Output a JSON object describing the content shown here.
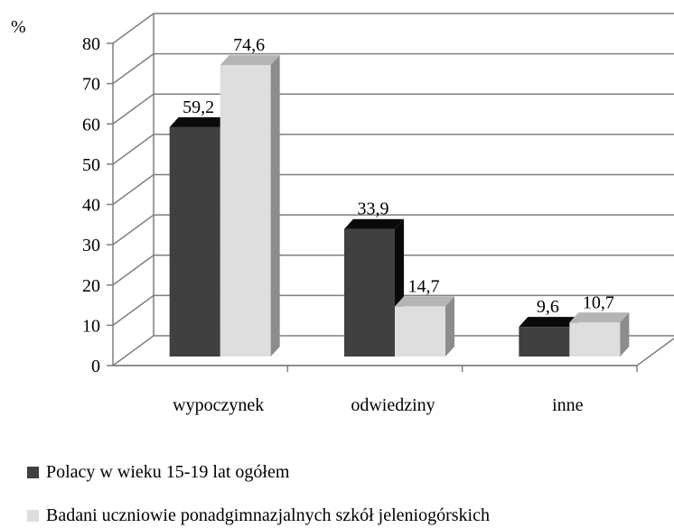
{
  "chart_data": {
    "type": "bar",
    "ylabel": "%",
    "ylim": [
      0,
      80
    ],
    "yticks": [
      0,
      10,
      20,
      30,
      40,
      50,
      60,
      70,
      80
    ],
    "categories": [
      "wypoczynek",
      "odwiedziny",
      "inne"
    ],
    "series": [
      {
        "name": "Polacy w wieku 15-19 lat ogółem",
        "values": [
          59.2,
          33.9,
          9.6
        ],
        "labels": [
          "59,2",
          "33,9",
          "9,6"
        ],
        "color": "#404040",
        "top_color": "#0a0a0a",
        "side_color": "#0a0a0a"
      },
      {
        "name": "Badani uczniowie ponadgimnazjalnych szkół jeleniogórskich",
        "values": [
          74.6,
          14.7,
          10.7
        ],
        "labels": [
          "74,6",
          "14,7",
          "10,7"
        ],
        "color": "#dedede",
        "top_color": "#b4b4b4",
        "side_color": "#8c8c8c"
      }
    ],
    "grid": true,
    "legend_position": "bottom",
    "style": "3d-column"
  }
}
